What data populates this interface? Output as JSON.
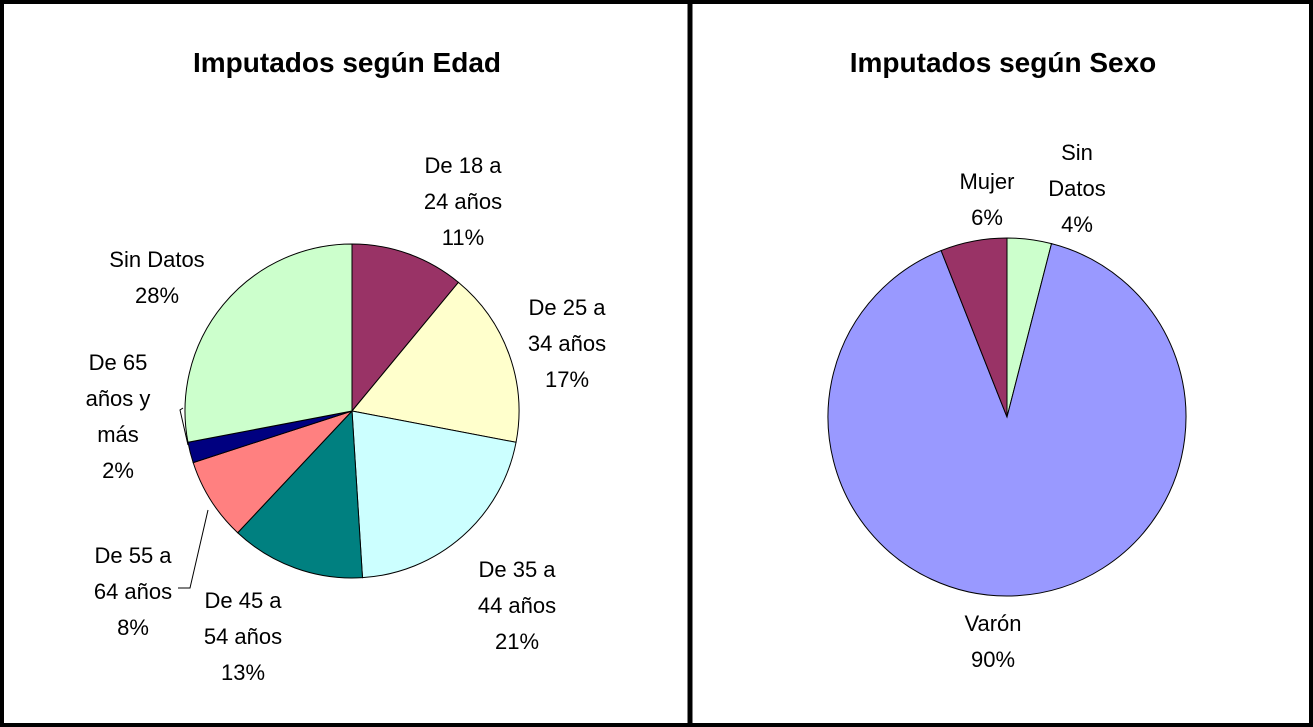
{
  "chart_data": [
    {
      "type": "pie",
      "title": "Imputados según Edad",
      "categories": [
        "De 18 a 24 años",
        "De 25 a 34 años",
        "De 35 a 44 años",
        "De 45 a 54 años",
        "De 55 a 64 años",
        "De 65 años y más",
        "Sin Datos"
      ],
      "values": [
        11,
        17,
        21,
        13,
        8,
        2,
        28
      ],
      "value_labels": [
        "11%",
        "17%",
        "21%",
        "13%",
        "8%",
        "2%",
        "28%"
      ],
      "colors": [
        "#993366",
        "#ffffcc",
        "#ccffff",
        "#008080",
        "#ff8080",
        "#000080",
        "#ccffcc"
      ]
    },
    {
      "type": "pie",
      "title": "Imputados según Sexo",
      "categories": [
        "Sin Datos",
        "Varón",
        "Mujer"
      ],
      "values": [
        4,
        90,
        6
      ],
      "value_labels": [
        "4%",
        "90%",
        "6%"
      ],
      "colors": [
        "#ccffcc",
        "#9999ff",
        "#993366"
      ]
    }
  ]
}
